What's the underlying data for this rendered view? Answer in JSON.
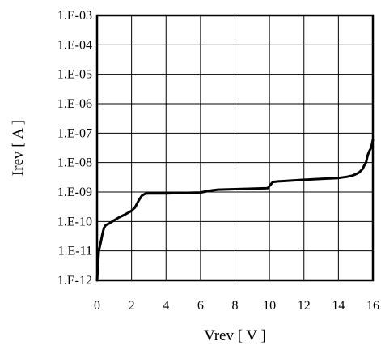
{
  "chart_data": {
    "type": "line",
    "title": "",
    "xlabel": "Vrev [ V ]",
    "ylabel": "Irev [ A ]",
    "xlim": [
      0,
      16
    ],
    "ylim": [
      1e-12,
      0.001
    ],
    "yscale": "log",
    "grid": true,
    "x_ticks": [
      0,
      2,
      4,
      6,
      8,
      10,
      12,
      14,
      16
    ],
    "x_tick_labels": [
      "0",
      "2",
      "4",
      "6",
      "8",
      "10",
      "12",
      "14",
      "16"
    ],
    "y_ticks": [
      1e-12,
      1e-11,
      1e-10,
      1e-09,
      1e-08,
      1e-07,
      1e-06,
      1e-05,
      0.0001,
      0.001
    ],
    "y_tick_labels": [
      "1.E-12",
      "1.E-11",
      "1.E-10",
      "1.E-09",
      "1.E-08",
      "1.E-07",
      "1.E-06",
      "1.E-05",
      "1.E-04",
      "1.E-03"
    ],
    "series": [
      {
        "color": "#000000",
        "x": [
          0.0,
          0.05,
          0.1,
          0.2,
          0.3,
          0.4,
          0.5,
          0.7,
          1.0,
          1.3,
          1.6,
          2.0,
          2.2,
          2.4,
          2.6,
          2.8,
          3.0,
          4.0,
          5.0,
          6.0,
          6.5,
          7.0,
          8.0,
          9.0,
          9.9,
          10.0,
          10.2,
          10.5,
          11.0,
          12.0,
          13.0,
          14.0,
          14.5,
          14.8,
          15.0,
          15.2,
          15.4,
          15.5,
          15.6,
          15.7,
          15.8,
          15.9,
          16.0
        ],
        "y": [
          1e-12,
          3e-12,
          1e-11,
          1.8e-11,
          3.5e-11,
          6e-11,
          7.5e-11,
          8.5e-11,
          1.1e-10,
          1.4e-10,
          1.7e-10,
          2.3e-10,
          3e-10,
          5e-10,
          7.5e-10,
          8.8e-10,
          9e-10,
          9e-10,
          9.3e-10,
          9.6e-10,
          1.1e-09,
          1.2e-09,
          1.25e-09,
          1.3e-09,
          1.35e-09,
          1.6e-09,
          2.2e-09,
          2.3e-09,
          2.4e-09,
          2.6e-09,
          2.8e-09,
          3e-09,
          3.3e-09,
          3.6e-09,
          4e-09,
          4.6e-09,
          6e-09,
          8e-09,
          1e-08,
          1.8e-08,
          2.5e-08,
          3.2e-08,
          6e-08
        ]
      }
    ]
  }
}
